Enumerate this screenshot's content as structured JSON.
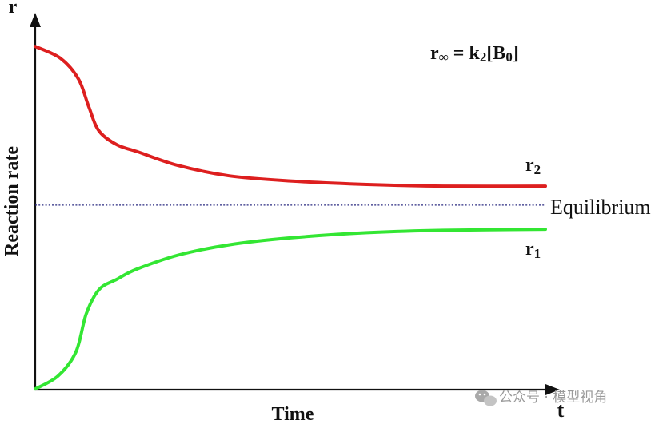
{
  "chart_data": {
    "type": "line",
    "xlabel": "Time",
    "ylabel": "Reaction rate",
    "x_axis_symbol": "t",
    "y_axis_symbol": "r",
    "formula": {
      "lhs_base": "r",
      "lhs_sub": "∞",
      "op": " = k",
      "k_sub": "2",
      "bracket_open": "[B",
      "b_sub": "0",
      "bracket_close": "]"
    },
    "equilibrium": {
      "label": "Equilibrium",
      "value": 0.535,
      "color": "#2a2a80"
    },
    "xlim": [
      0,
      1
    ],
    "ylim": [
      0,
      1
    ],
    "series": [
      {
        "name": "r2",
        "label_base": "r",
        "label_sub": "2",
        "color": "#dd1f1f",
        "x": [
          0.0,
          0.05,
          0.085,
          0.105,
          0.125,
          0.16,
          0.2,
          0.28,
          0.38,
          0.5,
          0.65,
          0.8,
          1.0
        ],
        "y": [
          0.995,
          0.96,
          0.9,
          0.82,
          0.75,
          0.71,
          0.69,
          0.65,
          0.62,
          0.605,
          0.595,
          0.59,
          0.59
        ]
      },
      {
        "name": "r1",
        "label_base": "r",
        "label_sub": "1",
        "color": "#33e633",
        "x": [
          0.0,
          0.045,
          0.08,
          0.1,
          0.125,
          0.16,
          0.2,
          0.28,
          0.38,
          0.5,
          0.65,
          0.8,
          1.0
        ],
        "y": [
          0.002,
          0.04,
          0.11,
          0.22,
          0.29,
          0.32,
          0.35,
          0.39,
          0.42,
          0.44,
          0.455,
          0.462,
          0.465
        ]
      }
    ]
  },
  "watermark": {
    "icon": "wechat-icon",
    "text": "公众号 · 模型视角"
  }
}
